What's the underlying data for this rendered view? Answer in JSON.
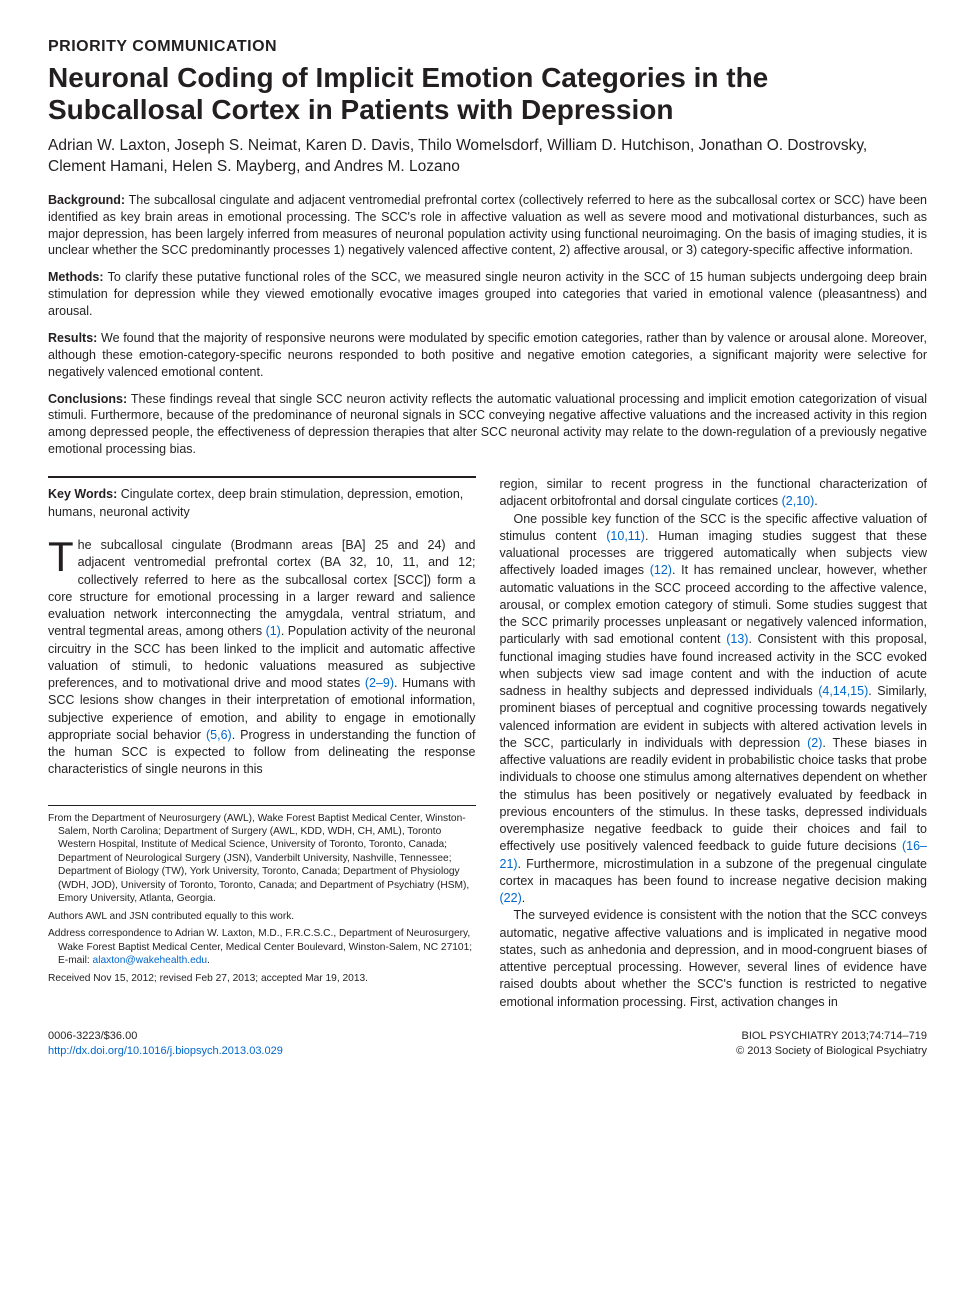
{
  "colors": {
    "text": "#231f20",
    "link": "#0066cc",
    "background": "#ffffff",
    "rule": "#231f20"
  },
  "typography": {
    "section_label_fontsize": 16,
    "title_fontsize": 28,
    "authors_fontsize": 15.5,
    "abstract_fontsize": 12.5,
    "body_fontsize": 12.5,
    "affil_fontsize": 10.2,
    "footer_fontsize": 11,
    "dropcap_fontsize": 42
  },
  "section_label": "Priority Communication",
  "title": "Neuronal Coding of Implicit Emotion Categories in the Subcallosal Cortex in Patients with Depression",
  "authors": "Adrian W. Laxton, Joseph S. Neimat, Karen D. Davis, Thilo Womelsdorf, William D. Hutchison, Jonathan O. Dostrovsky, Clement Hamani, Helen S. Mayberg, and Andres M. Lozano",
  "abstract": {
    "background": {
      "label": "Background:",
      "text": " The subcallosal cingulate and adjacent ventromedial prefrontal cortex (collectively referred to here as the subcallosal cortex or SCC) have been identified as key brain areas in emotional processing. The SCC's role in affective valuation as well as severe mood and motivational disturbances, such as major depression, has been largely inferred from measures of neuronal population activity using functional neuroimaging. On the basis of imaging studies, it is unclear whether the SCC predominantly processes 1) negatively valenced affective content, 2) affective arousal, or 3) category-specific affective information."
    },
    "methods": {
      "label": "Methods:",
      "text": " To clarify these putative functional roles of the SCC, we measured single neuron activity in the SCC of 15 human subjects undergoing deep brain stimulation for depression while they viewed emotionally evocative images grouped into categories that varied in emotional valence (pleasantness) and arousal."
    },
    "results": {
      "label": "Results:",
      "text": " We found that the majority of responsive neurons were modulated by specific emotion categories, rather than by valence or arousal alone. Moreover, although these emotion-category-specific neurons responded to both positive and negative emotion categories, a significant majority were selective for negatively valenced emotional content."
    },
    "conclusions": {
      "label": "Conclusions:",
      "text": " These findings reveal that single SCC neuron activity reflects the automatic valuational processing and implicit emotion categorization of visual stimuli. Furthermore, because of the predominance of neuronal signals in SCC conveying negative affective valuations and the increased activity in this region among depressed people, the effectiveness of depression therapies that alter SCC neuronal activity may relate to the down-regulation of a previously negative emotional processing bias."
    }
  },
  "keywords": {
    "label": "Key Words:",
    "text": " Cingulate cortex, deep brain stimulation, depression, emotion, humans, neuronal activity"
  },
  "body": {
    "dropcap": "T",
    "p1_a": "he subcallosal cingulate (Brodmann areas [BA] 25 and 24) and adjacent ventromedial prefrontal cortex (BA 32, 10, 11, and 12; collectively referred to here as the subcallosal cortex [SCC]) form a core structure for emotional processing in a larger reward and salience evaluation network interconnecting the amygdala, ventral striatum, and ventral tegmental areas, among others ",
    "ref1": "(1)",
    "p1_b": ". Population activity of the neuronal circuitry in the SCC has been linked to the implicit and automatic affective valuation of stimuli, to hedonic valuations measured as subjective preferences, and to motivational drive and mood states ",
    "ref2_9": "(2–9)",
    "p1_c": ". Humans with SCC lesions show changes in their interpretation of emotional information, subjective experience of emotion, and ability to engage in emotionally appropriate social behavior ",
    "ref5_6": "(5,6)",
    "p1_d": ". Progress in understanding the function of the human SCC is expected to follow from delineating the response characteristics of single neurons in this ",
    "p1_e": "region, similar to recent progress in the functional characterization of adjacent orbitofrontal and dorsal cingulate cortices ",
    "ref2_10": "(2,10)",
    "p1_f": ".",
    "p2_a": "One possible key function of the SCC is the specific affective valuation of stimulus content ",
    "ref10_11": "(10,11)",
    "p2_b": ". Human imaging studies suggest that these valuational processes are triggered automatically when subjects view affectively loaded images ",
    "ref12": "(12)",
    "p2_c": ". It has remained unclear, however, whether automatic valuations in the SCC proceed according to the affective valence, arousal, or complex emotion category of stimuli. Some studies suggest that the SCC primarily processes unpleasant or negatively valenced information, particularly with sad emotional content ",
    "ref13": "(13)",
    "p2_d": ". Consistent with this proposal, functional imaging studies have found increased activity in the SCC evoked when subjects view sad image content and with the induction of acute sadness in healthy subjects and depressed individuals ",
    "ref4_14_15": "(4,14,15)",
    "p2_e": ". Similarly, prominent biases of perceptual and cognitive processing towards negatively valenced information are evident in subjects with altered activation levels in the SCC, particularly in individuals with depression ",
    "ref2b": "(2)",
    "p2_f": ". These biases in affective valuations are readily evident in probabilistic choice tasks that probe individuals to choose one stimulus among alternatives dependent on whether the stimulus has been positively or negatively evaluated by feedback in previous encounters of the stimulus. In these tasks, depressed individuals overemphasize negative feedback to guide their choices and fail to effectively use positively valenced feedback to guide future decisions ",
    "ref16_21": "(16–21)",
    "p2_g": ". Furthermore, microstimulation in a subzone of the pregenual cingulate cortex in macaques has been found to increase negative decision making ",
    "ref22": "(22)",
    "p2_h": ".",
    "p3": "The surveyed evidence is consistent with the notion that the SCC conveys automatic, negative affective valuations and is implicated in negative mood states, such as anhedonia and depression, and in mood-congruent biases of attentive perceptual processing. However, several lines of evidence have raised doubts about whether the SCC's function is restricted to negative emotional information processing. First, activation changes in"
  },
  "affiliations": {
    "from": "From the Department of Neurosurgery (AWL), Wake Forest Baptist Medical Center, Winston-Salem, North Carolina; Department of Surgery (AWL, KDD, WDH, CH, AML), Toronto Western Hospital, Institute of Medical Science, University of Toronto, Toronto, Canada; Department of Neurological Surgery (JSN), Vanderbilt University, Nashville, Tennessee; Department of Biology (TW), York University, Toronto, Canada; Department of Physiology (WDH, JOD), University of Toronto, Toronto, Canada; and Department of Psychiatry (HSM), Emory University, Atlanta, Georgia.",
    "equal": "Authors AWL and JSN contributed equally to this work.",
    "correspondence_a": "Address correspondence to Adrian W. Laxton, M.D., F.R.C.S.C., Department of Neurosurgery, Wake Forest Baptist Medical Center, Medical Center Boulevard, Winston-Salem, NC 27101; E-mail: ",
    "email": "alaxton@wakehealth.edu",
    "correspondence_b": ".",
    "received": "Received Nov 15, 2012; revised Feb 27, 2013; accepted Mar 19, 2013."
  },
  "footer": {
    "issn_price": "0006-3223/$36.00",
    "doi": "http://dx.doi.org/10.1016/j.biopsych.2013.03.029",
    "citation": "BIOL PSYCHIATRY 2013;74:714–719",
    "copyright": "© 2013 Society of Biological Psychiatry"
  }
}
